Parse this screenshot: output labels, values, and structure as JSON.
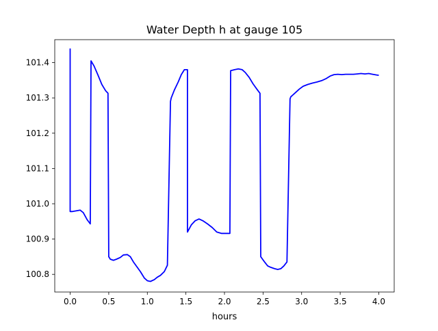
{
  "chart_data": {
    "type": "line",
    "title": "Water Depth h at gauge 105",
    "xlabel": "hours",
    "ylabel": "",
    "xlim": [
      -0.2,
      4.2
    ],
    "ylim": [
      100.75,
      101.465
    ],
    "xticks": [
      0.0,
      0.5,
      1.0,
      1.5,
      2.0,
      2.5,
      3.0,
      3.5,
      4.0
    ],
    "xtick_labels": [
      "0.0",
      "0.5",
      "1.0",
      "1.5",
      "2.0",
      "2.5",
      "3.0",
      "3.5",
      "4.0"
    ],
    "yticks": [
      100.8,
      100.9,
      101.0,
      101.1,
      101.2,
      101.3,
      101.4
    ],
    "ytick_labels": [
      "100.8",
      "100.9",
      "101.0",
      "101.1",
      "101.2",
      "101.3",
      "101.4"
    ],
    "grid": false,
    "series": [
      {
        "color": "#0000ff",
        "x": [
          0.0,
          0.0,
          0.03,
          0.08,
          0.13,
          0.17,
          0.22,
          0.26,
          0.27,
          0.31,
          0.36,
          0.41,
          0.46,
          0.49,
          0.5,
          0.52,
          0.56,
          0.6,
          0.65,
          0.69,
          0.74,
          0.78,
          0.82,
          0.87,
          0.91,
          0.96,
          1.0,
          1.04,
          1.09,
          1.13,
          1.17,
          1.22,
          1.26,
          1.3,
          1.31,
          1.35,
          1.4,
          1.44,
          1.48,
          1.52,
          1.52,
          1.57,
          1.62,
          1.67,
          1.72,
          1.78,
          1.84,
          1.9,
          1.96,
          2.02,
          2.07,
          2.08,
          2.13,
          2.18,
          2.23,
          2.27,
          2.32,
          2.37,
          2.42,
          2.46,
          2.47,
          2.52,
          2.56,
          2.6,
          2.65,
          2.69,
          2.73,
          2.77,
          2.81,
          2.85,
          2.86,
          2.88,
          2.92,
          2.97,
          3.02,
          3.08,
          3.14,
          3.2,
          3.26,
          3.32,
          3.37,
          3.42,
          3.47,
          3.52,
          3.57,
          3.62,
          3.67,
          3.72,
          3.77,
          3.82,
          3.87,
          3.92,
          3.97,
          4.0
        ],
        "y": [
          101.44,
          100.978,
          100.978,
          100.98,
          100.982,
          100.975,
          100.955,
          100.943,
          101.405,
          101.39,
          101.365,
          101.338,
          101.32,
          101.313,
          100.85,
          100.843,
          100.84,
          100.843,
          100.848,
          100.855,
          100.856,
          100.85,
          100.835,
          100.82,
          100.808,
          100.79,
          100.782,
          100.78,
          100.785,
          100.792,
          100.797,
          100.808,
          100.826,
          101.29,
          101.3,
          101.322,
          101.345,
          101.366,
          101.38,
          101.38,
          100.92,
          100.94,
          100.952,
          100.957,
          100.952,
          100.943,
          100.933,
          100.92,
          100.916,
          100.916,
          100.916,
          101.377,
          101.38,
          101.382,
          101.38,
          101.372,
          101.358,
          101.34,
          101.325,
          101.313,
          100.85,
          100.835,
          100.824,
          100.82,
          100.816,
          100.814,
          100.816,
          100.824,
          100.835,
          101.297,
          101.303,
          101.307,
          101.315,
          101.325,
          101.333,
          101.338,
          101.342,
          101.345,
          101.349,
          101.355,
          101.362,
          101.366,
          101.367,
          101.366,
          101.367,
          101.367,
          101.367,
          101.368,
          101.369,
          101.368,
          101.369,
          101.367,
          101.365,
          101.364
        ]
      }
    ]
  }
}
